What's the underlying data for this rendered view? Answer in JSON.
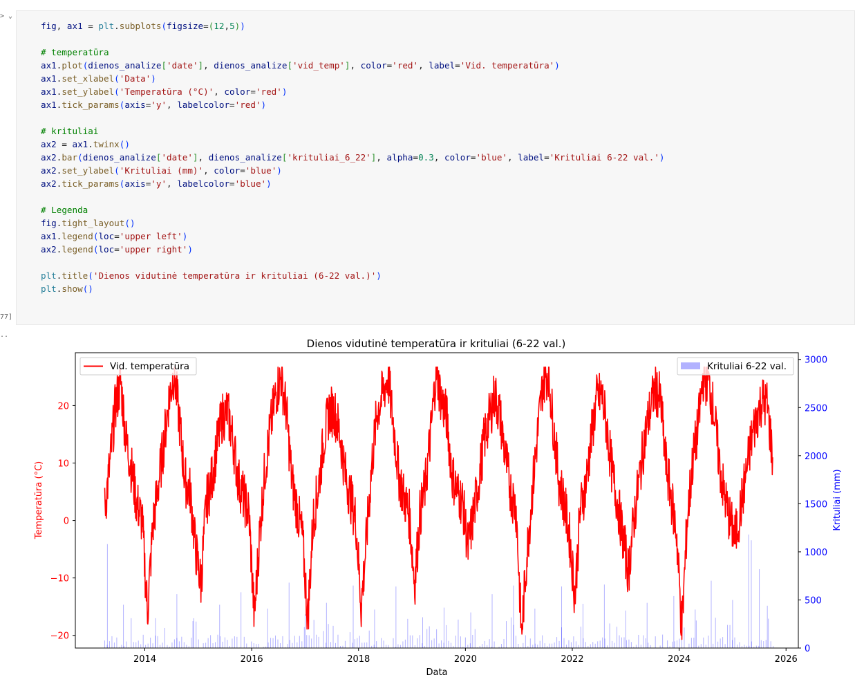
{
  "cell": {
    "collapse_glyph": "> ⌄",
    "exec_count": "77]",
    "output_marker": "..",
    "code_lines": [
      [
        [
          "fig",
          "t-var"
        ],
        [
          ", ",
          ""
        ],
        [
          "ax1",
          "t-var"
        ],
        [
          " = ",
          ""
        ],
        [
          "plt",
          "t-mod"
        ],
        [
          ".",
          ""
        ],
        [
          "subplots",
          "t-fn"
        ],
        [
          "(",
          "t-p1"
        ],
        [
          "figsize",
          "t-var"
        ],
        [
          "=",
          ""
        ],
        [
          "(",
          "t-p2"
        ],
        [
          "12",
          "t-num"
        ],
        [
          ",",
          ""
        ],
        [
          "5",
          "t-num"
        ],
        [
          ")",
          "t-p2"
        ],
        [
          ")",
          "t-p1"
        ]
      ],
      [],
      [
        [
          "# temperatūra",
          "t-com"
        ]
      ],
      [
        [
          "ax1",
          "t-var"
        ],
        [
          ".",
          ""
        ],
        [
          "plot",
          "t-fn"
        ],
        [
          "(",
          "t-p1"
        ],
        [
          "dienos_analize",
          "t-var"
        ],
        [
          "[",
          "t-p2"
        ],
        [
          "'date'",
          "t-str"
        ],
        [
          "]",
          "t-p2"
        ],
        [
          ", ",
          ""
        ],
        [
          "dienos_analize",
          "t-var"
        ],
        [
          "[",
          "t-p2"
        ],
        [
          "'vid_temp'",
          "t-str"
        ],
        [
          "]",
          "t-p2"
        ],
        [
          ", ",
          ""
        ],
        [
          "color",
          "t-var"
        ],
        [
          "=",
          ""
        ],
        [
          "'red'",
          "t-str"
        ],
        [
          ", ",
          ""
        ],
        [
          "label",
          "t-var"
        ],
        [
          "=",
          ""
        ],
        [
          "'Vid. temperatūra'",
          "t-str"
        ],
        [
          ")",
          "t-p1"
        ]
      ],
      [
        [
          "ax1",
          "t-var"
        ],
        [
          ".",
          ""
        ],
        [
          "set_xlabel",
          "t-fn"
        ],
        [
          "(",
          "t-p1"
        ],
        [
          "'Data'",
          "t-str"
        ],
        [
          ")",
          "t-p1"
        ]
      ],
      [
        [
          "ax1",
          "t-var"
        ],
        [
          ".",
          ""
        ],
        [
          "set_ylabel",
          "t-fn"
        ],
        [
          "(",
          "t-p1"
        ],
        [
          "'Temperatūra (°C)'",
          "t-str"
        ],
        [
          ", ",
          ""
        ],
        [
          "color",
          "t-var"
        ],
        [
          "=",
          ""
        ],
        [
          "'red'",
          "t-str"
        ],
        [
          ")",
          "t-p1"
        ]
      ],
      [
        [
          "ax1",
          "t-var"
        ],
        [
          ".",
          ""
        ],
        [
          "tick_params",
          "t-fn"
        ],
        [
          "(",
          "t-p1"
        ],
        [
          "axis",
          "t-var"
        ],
        [
          "=",
          ""
        ],
        [
          "'y'",
          "t-str"
        ],
        [
          ", ",
          ""
        ],
        [
          "labelcolor",
          "t-var"
        ],
        [
          "=",
          ""
        ],
        [
          "'red'",
          "t-str"
        ],
        [
          ")",
          "t-p1"
        ]
      ],
      [],
      [
        [
          "# krituliai",
          "t-com"
        ]
      ],
      [
        [
          "ax2",
          "t-var"
        ],
        [
          " = ",
          ""
        ],
        [
          "ax1",
          "t-var"
        ],
        [
          ".",
          ""
        ],
        [
          "twinx",
          "t-fn"
        ],
        [
          "(",
          "t-p1"
        ],
        [
          ")",
          "t-p1"
        ]
      ],
      [
        [
          "ax2",
          "t-var"
        ],
        [
          ".",
          ""
        ],
        [
          "bar",
          "t-fn"
        ],
        [
          "(",
          "t-p1"
        ],
        [
          "dienos_analize",
          "t-var"
        ],
        [
          "[",
          "t-p2"
        ],
        [
          "'date'",
          "t-str"
        ],
        [
          "]",
          "t-p2"
        ],
        [
          ", ",
          ""
        ],
        [
          "dienos_analize",
          "t-var"
        ],
        [
          "[",
          "t-p2"
        ],
        [
          "'krituliai_6_22'",
          "t-str"
        ],
        [
          "]",
          "t-p2"
        ],
        [
          ", ",
          ""
        ],
        [
          "alpha",
          "t-var"
        ],
        [
          "=",
          ""
        ],
        [
          "0.3",
          "t-num"
        ],
        [
          ", ",
          ""
        ],
        [
          "color",
          "t-var"
        ],
        [
          "=",
          ""
        ],
        [
          "'blue'",
          "t-str"
        ],
        [
          ", ",
          ""
        ],
        [
          "label",
          "t-var"
        ],
        [
          "=",
          ""
        ],
        [
          "'Krituliai 6-22 val.'",
          "t-str"
        ],
        [
          ")",
          "t-p1"
        ]
      ],
      [
        [
          "ax2",
          "t-var"
        ],
        [
          ".",
          ""
        ],
        [
          "set_ylabel",
          "t-fn"
        ],
        [
          "(",
          "t-p1"
        ],
        [
          "'Krituliai (mm)'",
          "t-str"
        ],
        [
          ", ",
          ""
        ],
        [
          "color",
          "t-var"
        ],
        [
          "=",
          ""
        ],
        [
          "'blue'",
          "t-str"
        ],
        [
          ")",
          "t-p1"
        ]
      ],
      [
        [
          "ax2",
          "t-var"
        ],
        [
          ".",
          ""
        ],
        [
          "tick_params",
          "t-fn"
        ],
        [
          "(",
          "t-p1"
        ],
        [
          "axis",
          "t-var"
        ],
        [
          "=",
          ""
        ],
        [
          "'y'",
          "t-str"
        ],
        [
          ", ",
          ""
        ],
        [
          "labelcolor",
          "t-var"
        ],
        [
          "=",
          ""
        ],
        [
          "'blue'",
          "t-str"
        ],
        [
          ")",
          "t-p1"
        ]
      ],
      [],
      [
        [
          "# Legenda",
          "t-com"
        ]
      ],
      [
        [
          "fig",
          "t-var"
        ],
        [
          ".",
          ""
        ],
        [
          "tight_layout",
          "t-fn"
        ],
        [
          "(",
          "t-p1"
        ],
        [
          ")",
          "t-p1"
        ]
      ],
      [
        [
          "ax1",
          "t-var"
        ],
        [
          ".",
          ""
        ],
        [
          "legend",
          "t-fn"
        ],
        [
          "(",
          "t-p1"
        ],
        [
          "loc",
          "t-var"
        ],
        [
          "=",
          ""
        ],
        [
          "'upper left'",
          "t-str"
        ],
        [
          ")",
          "t-p1"
        ]
      ],
      [
        [
          "ax2",
          "t-var"
        ],
        [
          ".",
          ""
        ],
        [
          "legend",
          "t-fn"
        ],
        [
          "(",
          "t-p1"
        ],
        [
          "loc",
          "t-var"
        ],
        [
          "=",
          ""
        ],
        [
          "'upper right'",
          "t-str"
        ],
        [
          ")",
          "t-p1"
        ]
      ],
      [],
      [
        [
          "plt",
          "t-mod"
        ],
        [
          ".",
          ""
        ],
        [
          "title",
          "t-fn"
        ],
        [
          "(",
          "t-p1"
        ],
        [
          "'Dienos vidutinė temperatūra ir krituliai (6-22 val.)'",
          "t-str"
        ],
        [
          ")",
          "t-p1"
        ]
      ],
      [
        [
          "plt",
          "t-mod"
        ],
        [
          ".",
          ""
        ],
        [
          "show",
          "t-fn"
        ],
        [
          "(",
          "t-p1"
        ],
        [
          ")",
          "t-p1"
        ]
      ]
    ]
  },
  "chart_data": {
    "type": "line+bar",
    "title": "Dienos vidutinė temperatūra ir krituliai (6-22 val.)",
    "xlabel": "Data",
    "ylabel_left": "Temperatūra (°C)",
    "ylabel_right": "Krituliai (mm)",
    "xlim": [
      2012.7,
      2026.23
    ],
    "x_ticks": [
      2014,
      2016,
      2018,
      2020,
      2022,
      2024,
      2026
    ],
    "ylim_left": [
      -22.2,
      29.2
    ],
    "y_ticks_left": [
      -20,
      -10,
      0,
      10,
      20
    ],
    "ylim_right": [
      0,
      3070
    ],
    "y_ticks_right": [
      0,
      500,
      1000,
      1500,
      2000,
      2500,
      3000
    ],
    "legend_left": {
      "placement": "upper left",
      "label": "Vid. temperatūra"
    },
    "legend_right": {
      "placement": "upper right",
      "label": "Krituliai 6-22 val."
    },
    "colors": {
      "temperature": "#ff0000",
      "precipitation": "#0000ff",
      "left_axis": "#ff0000",
      "right_axis": "#0000ff"
    },
    "precip_alpha": 0.3,
    "date_range": [
      "2013-04",
      "2025-10"
    ],
    "temperature_series": {
      "name": "Vid. temperatūra",
      "x": [
        2013.25,
        2013.35,
        2013.45,
        2013.55,
        2013.65,
        2013.75,
        2013.85,
        2013.95,
        2014.05,
        2014.15,
        2014.25,
        2014.35,
        2014.45,
        2014.55,
        2014.65,
        2014.75,
        2014.85,
        2014.95,
        2015.05,
        2015.15,
        2015.25,
        2015.35,
        2015.45,
        2015.55,
        2015.65,
        2015.75,
        2015.85,
        2015.95,
        2016.05,
        2016.15,
        2016.25,
        2016.35,
        2016.45,
        2016.55,
        2016.65,
        2016.75,
        2016.85,
        2016.95,
        2017.05,
        2017.15,
        2017.25,
        2017.35,
        2017.45,
        2017.55,
        2017.65,
        2017.75,
        2017.85,
        2017.95,
        2018.05,
        2018.15,
        2018.25,
        2018.35,
        2018.45,
        2018.55,
        2018.65,
        2018.75,
        2018.85,
        2018.95,
        2019.05,
        2019.15,
        2019.25,
        2019.35,
        2019.45,
        2019.55,
        2019.65,
        2019.75,
        2019.85,
        2019.95,
        2020.05,
        2020.15,
        2020.25,
        2020.35,
        2020.45,
        2020.55,
        2020.65,
        2020.75,
        2020.85,
        2020.95,
        2021.05,
        2021.15,
        2021.25,
        2021.35,
        2021.45,
        2021.55,
        2021.65,
        2021.75,
        2021.85,
        2021.95,
        2022.05,
        2022.15,
        2022.25,
        2022.35,
        2022.45,
        2022.55,
        2022.65,
        2022.75,
        2022.85,
        2022.95,
        2023.05,
        2023.15,
        2023.25,
        2023.35,
        2023.45,
        2023.55,
        2023.65,
        2023.75,
        2023.85,
        2023.95,
        2024.05,
        2024.15,
        2024.25,
        2024.35,
        2024.45,
        2024.55,
        2024.65,
        2024.75,
        2024.85,
        2024.95,
        2025.05,
        2025.15,
        2025.25,
        2025.35,
        2025.45,
        2025.55,
        2025.65,
        2025.75
      ],
      "values": [
        2,
        10,
        20,
        24,
        14,
        9,
        3,
        0,
        -16,
        -1,
        6,
        13,
        21,
        26,
        17,
        7,
        5,
        -5,
        -11,
        3,
        7,
        13,
        18,
        19,
        14,
        7,
        4,
        1,
        -17,
        -2,
        9,
        16,
        22,
        25,
        19,
        7,
        2,
        -3,
        -17,
        0,
        6,
        14,
        19,
        19,
        15,
        8,
        4,
        0,
        -15,
        -3,
        10,
        19,
        22,
        25,
        17,
        8,
        4,
        1,
        -11,
        1,
        6,
        15,
        26,
        21,
        18,
        8,
        5,
        3,
        -5,
        1,
        7,
        14,
        18,
        22,
        18,
        11,
        5,
        2,
        -20,
        -6,
        5,
        15,
        24,
        26,
        16,
        7,
        3,
        -3,
        -13,
        2,
        6,
        14,
        21,
        22,
        16,
        8,
        3,
        -3,
        -9,
        0,
        7,
        14,
        19,
        23,
        21,
        10,
        4,
        -2,
        -19,
        0,
        10,
        16,
        25,
        24,
        19,
        10,
        4,
        0,
        -3,
        2,
        8,
        14,
        18,
        21,
        20,
        11
      ]
    },
    "precip_peaks": {
      "name": "Krituliai 6-22 val.",
      "x": [
        2013.3,
        2013.6,
        2014.2,
        2014.6,
        2014.9,
        2015.4,
        2015.8,
        2016.3,
        2016.7,
        2017.0,
        2017.4,
        2017.9,
        2018.3,
        2018.7,
        2019.2,
        2019.6,
        2020.1,
        2020.5,
        2020.9,
        2021.3,
        2021.8,
        2022.2,
        2022.6,
        2023.0,
        2023.4,
        2023.9,
        2024.3,
        2024.6,
        2025.0,
        2025.3,
        2025.35,
        2025.5,
        2025.65
      ],
      "values": [
        1080,
        450,
        310,
        560,
        280,
        450,
        580,
        410,
        680,
        350,
        470,
        650,
        400,
        640,
        320,
        420,
        370,
        560,
        650,
        410,
        640,
        460,
        660,
        390,
        470,
        540,
        400,
        700,
        500,
        1180,
        1120,
        820,
        440
      ]
    }
  }
}
